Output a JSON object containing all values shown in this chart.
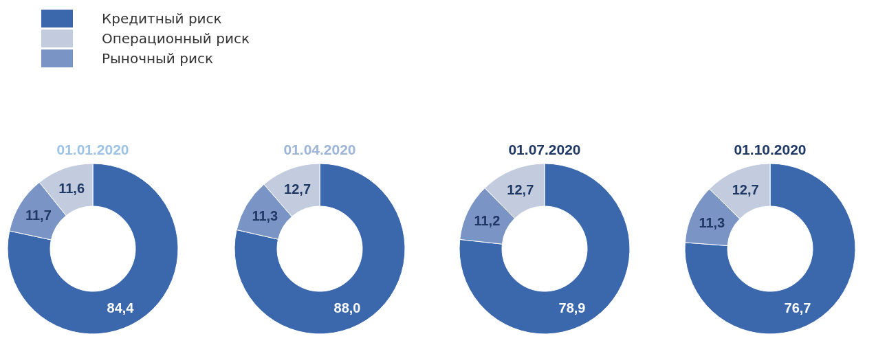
{
  "chart_data": [
    {
      "type": "donut",
      "title": "01.01.2020",
      "categories": [
        "Кредитный риск",
        "Рыночный риск",
        "Операционный риск"
      ],
      "values": [
        84.4,
        11.7,
        11.6
      ],
      "value_labels": [
        "84,4",
        "11,7",
        "11,6"
      ],
      "colors": [
        "#3b67ad",
        "#7a94c5",
        "#c3cbde"
      ],
      "legend": "top"
    },
    {
      "type": "donut",
      "title": "01.04.2020",
      "categories": [
        null,
        null,
        null
      ],
      "values": [
        88.0,
        11.3,
        12.7
      ],
      "value_labels": [
        "88,0",
        "11,3",
        "12,7"
      ],
      "colors": [
        "#3b67ad",
        "#7a94c5",
        "#c3cbde"
      ],
      "legend": false
    },
    {
      "type": "donut",
      "title": "01.07.2020",
      "categories": [
        null,
        null,
        null
      ],
      "values": [
        78.9,
        11.2,
        12.7
      ],
      "value_labels": [
        "78,9",
        "11,2",
        "12,7"
      ],
      "colors": [
        "#3b67ad",
        "#7a94c5",
        "#c3cbde"
      ],
      "legend": false
    },
    {
      "type": "donut",
      "title": "01.10.2020",
      "categories": [
        null,
        null,
        null
      ],
      "values": [
        76.7,
        11.3,
        12.7
      ],
      "value_labels": [
        "76,7",
        "11,3",
        "12,7"
      ],
      "colors": [
        "#3b67ad",
        "#7a94c5",
        "#c3cbde"
      ],
      "legend": false
    }
  ]
}
